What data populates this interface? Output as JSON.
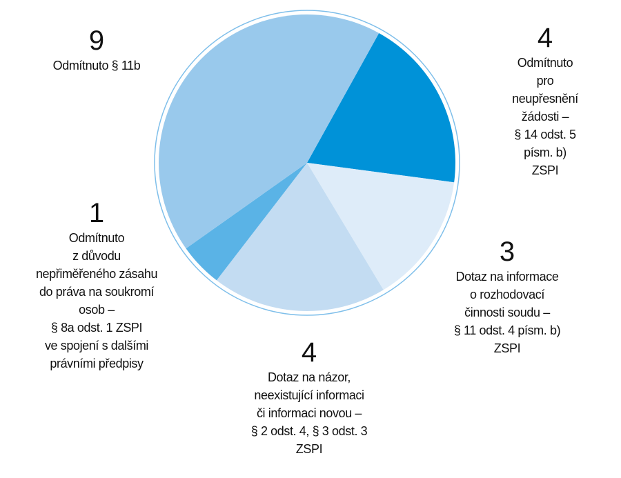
{
  "chart_data": {
    "type": "pie",
    "categories": [
      "Odmítnuto\npro neupřesnění\nžádosti –\n§ 14 odst. 5 písm. b)\nZSPI",
      "Dotaz na informace\no rozhodovací\nčinnosti soudu –\n§ 11 odst. 4 písm. b)\nZSPI",
      "Dotaz na názor,\nneexistující informaci\nči informaci novou –\n§ 2 odst. 4, § 3 odst. 3\nZSPI",
      "Odmítnuto\nz důvodu\nnepřiměřeného zásahu\ndo práva na soukromí\nosob –\n§ 8a odst. 1 ZSPI\nve spojení s dalšími\nprávními předpisy",
      "Odmítnuto § 11b"
    ],
    "values": [
      4,
      3,
      4,
      1,
      9
    ],
    "colors": [
      "#0092d8",
      "#deecf9",
      "#c3dcf2",
      "#5ab3e6",
      "#99c9ec"
    ]
  }
}
